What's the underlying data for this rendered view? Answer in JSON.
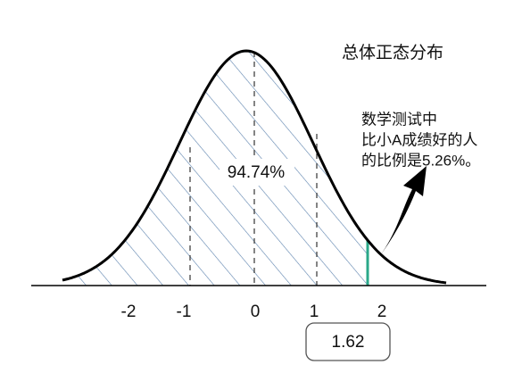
{
  "title": "总体正态分布",
  "annotation": [
    "数学测试中",
    "比小A成绩好的人",
    "的比例是5.26%。"
  ],
  "area_label": "94.74%",
  "axis_labels": [
    "-2",
    "-1",
    "0",
    "1",
    "2"
  ],
  "marker_label": "1.62"
}
